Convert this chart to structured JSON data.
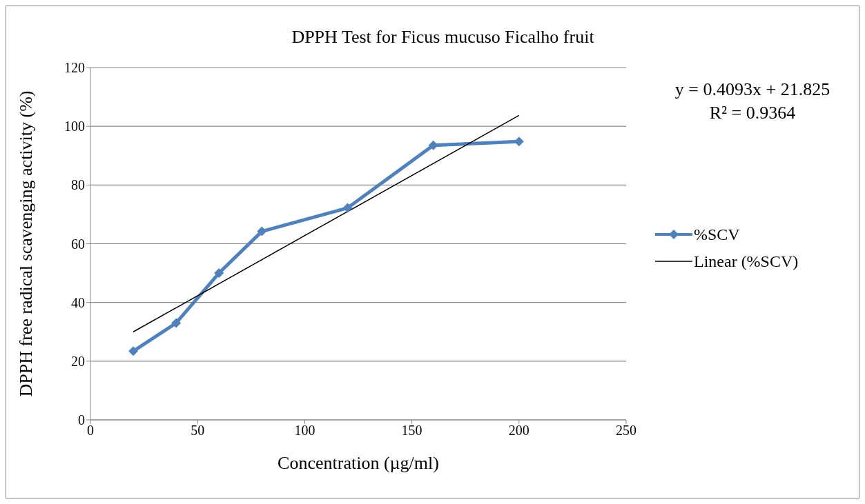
{
  "chart_data": {
    "type": "line",
    "title": "DPPH Test for Ficus mucuso Ficalho fruit",
    "xlabel": "Concentration (µg/ml)",
    "ylabel": "DPPH free radical scavenging activity (%)",
    "x": [
      20,
      40,
      60,
      80,
      120,
      160,
      200
    ],
    "series": [
      {
        "name": "%SCV",
        "color": "#4f81bd",
        "values": [
          23.4,
          33,
          50,
          64.2,
          72.2,
          93.5,
          94.8
        ],
        "marker": "diamond"
      },
      {
        "name": "Linear (%SCV)",
        "type": "line",
        "color": "#000000",
        "x": [
          20,
          200
        ],
        "values": [
          30.0,
          103.7
        ],
        "marker": "none"
      }
    ],
    "xlim": [
      0,
      250
    ],
    "xticks": [
      0,
      50,
      100,
      150,
      200,
      250
    ],
    "ylim": [
      0,
      120
    ],
    "yticks": [
      0,
      20,
      40,
      60,
      80,
      100,
      120
    ],
    "grid": "y",
    "legend": "right",
    "line_style": "solid",
    "annotations": [
      "y = 0.4093x + 21.825",
      "R² = 0.9364"
    ]
  }
}
